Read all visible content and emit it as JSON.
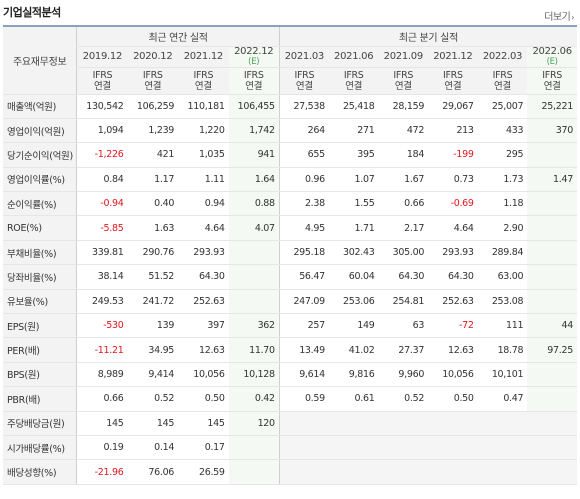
{
  "header": {
    "title": "기업실적분석",
    "more_label": "더보기",
    "more_icon": "chevron-right-icon"
  },
  "table": {
    "row_header_label": "주요재무정보",
    "annual_group_label": "최근 연간 실적",
    "quarter_group_label": "최근 분기 실적",
    "periods": [
      {
        "label": "2019.12",
        "sub": "",
        "ifrs": "IFRS",
        "basis": "연결"
      },
      {
        "label": "2020.12",
        "sub": "",
        "ifrs": "IFRS",
        "basis": "연결"
      },
      {
        "label": "2021.12",
        "sub": "",
        "ifrs": "IFRS",
        "basis": "연결"
      },
      {
        "label": "2022.12",
        "sub": "(E)",
        "ifrs": "IFRS",
        "basis": "연결"
      },
      {
        "label": "2021.03",
        "sub": "",
        "ifrs": "IFRS",
        "basis": "연결"
      },
      {
        "label": "2021.06",
        "sub": "",
        "ifrs": "IFRS",
        "basis": "연결"
      },
      {
        "label": "2021.09",
        "sub": "",
        "ifrs": "IFRS",
        "basis": "연결"
      },
      {
        "label": "2021.12",
        "sub": "",
        "ifrs": "IFRS",
        "basis": "연결"
      },
      {
        "label": "2022.03",
        "sub": "",
        "ifrs": "IFRS",
        "basis": "연결"
      },
      {
        "label": "2022.06",
        "sub": "(E)",
        "ifrs": "IFRS",
        "basis": "연결"
      }
    ],
    "rows": [
      {
        "label": "매출액(억원)",
        "values": [
          "130,542",
          "106,259",
          "110,181",
          "106,455",
          "27,538",
          "25,418",
          "28,159",
          "29,067",
          "25,007",
          "25,221"
        ]
      },
      {
        "label": "영업이익(억원)",
        "values": [
          "1,094",
          "1,239",
          "1,220",
          "1,742",
          "264",
          "271",
          "472",
          "213",
          "433",
          "370"
        ]
      },
      {
        "label": "당기순이익(억원)",
        "values": [
          "-1,226",
          "421",
          "1,035",
          "941",
          "655",
          "395",
          "184",
          "-199",
          "295",
          ""
        ]
      },
      {
        "label": "영업이익률(%)",
        "values": [
          "0.84",
          "1.17",
          "1.11",
          "1.64",
          "0.96",
          "1.07",
          "1.67",
          "0.73",
          "1.73",
          "1.47"
        ]
      },
      {
        "label": "순이익률(%)",
        "values": [
          "-0.94",
          "0.40",
          "0.94",
          "0.88",
          "2.38",
          "1.55",
          "0.66",
          "-0.69",
          "1.18",
          ""
        ]
      },
      {
        "label": "ROE(%)",
        "values": [
          "-5.85",
          "1.63",
          "4.64",
          "4.07",
          "4.95",
          "1.71",
          "2.17",
          "4.64",
          "2.90",
          ""
        ]
      },
      {
        "label": "부채비율(%)",
        "values": [
          "339.81",
          "290.76",
          "293.93",
          "",
          "295.18",
          "302.43",
          "305.00",
          "293.93",
          "289.84",
          ""
        ]
      },
      {
        "label": "당좌비율(%)",
        "values": [
          "38.14",
          "51.52",
          "64.30",
          "",
          "56.47",
          "60.04",
          "64.30",
          "64.30",
          "63.00",
          ""
        ]
      },
      {
        "label": "유보율(%)",
        "values": [
          "249.53",
          "241.72",
          "252.63",
          "",
          "247.09",
          "253.06",
          "254.81",
          "252.63",
          "253.08",
          ""
        ]
      },
      {
        "label": "EPS(원)",
        "values": [
          "-530",
          "139",
          "397",
          "362",
          "257",
          "149",
          "63",
          "-72",
          "111",
          "44"
        ]
      },
      {
        "label": "PER(배)",
        "values": [
          "-11.21",
          "34.95",
          "12.63",
          "11.70",
          "13.49",
          "41.02",
          "27.37",
          "12.63",
          "18.78",
          "97.25"
        ]
      },
      {
        "label": "BPS(원)",
        "values": [
          "8,989",
          "9,414",
          "10,056",
          "10,128",
          "9,614",
          "9,816",
          "9,960",
          "10,056",
          "10,101",
          ""
        ]
      },
      {
        "label": "PBR(배)",
        "values": [
          "0.66",
          "0.52",
          "0.50",
          "0.42",
          "0.59",
          "0.61",
          "0.52",
          "0.50",
          "0.47",
          ""
        ]
      },
      {
        "label": "주당배당금(원)",
        "values": [
          "145",
          "145",
          "145",
          "120",
          "",
          "",
          "",
          "",
          "",
          ""
        ]
      },
      {
        "label": "시가배당률(%)",
        "values": [
          "0.19",
          "0.14",
          "0.17",
          "",
          "",
          "",
          "",
          "",
          "",
          ""
        ]
      },
      {
        "label": "배당성향(%)",
        "values": [
          "-21.96",
          "76.06",
          "26.59",
          "",
          "",
          "",
          "",
          "",
          "",
          ""
        ]
      }
    ],
    "group_starts": [
      3,
      6,
      9,
      13
    ],
    "blank_quarter_from_row": 13,
    "colors": {
      "negative": "#e0171e",
      "ifrs": "#e35d10",
      "estimate_sub": "#4aa55a",
      "top_border": "#8aa2bf"
    }
  }
}
